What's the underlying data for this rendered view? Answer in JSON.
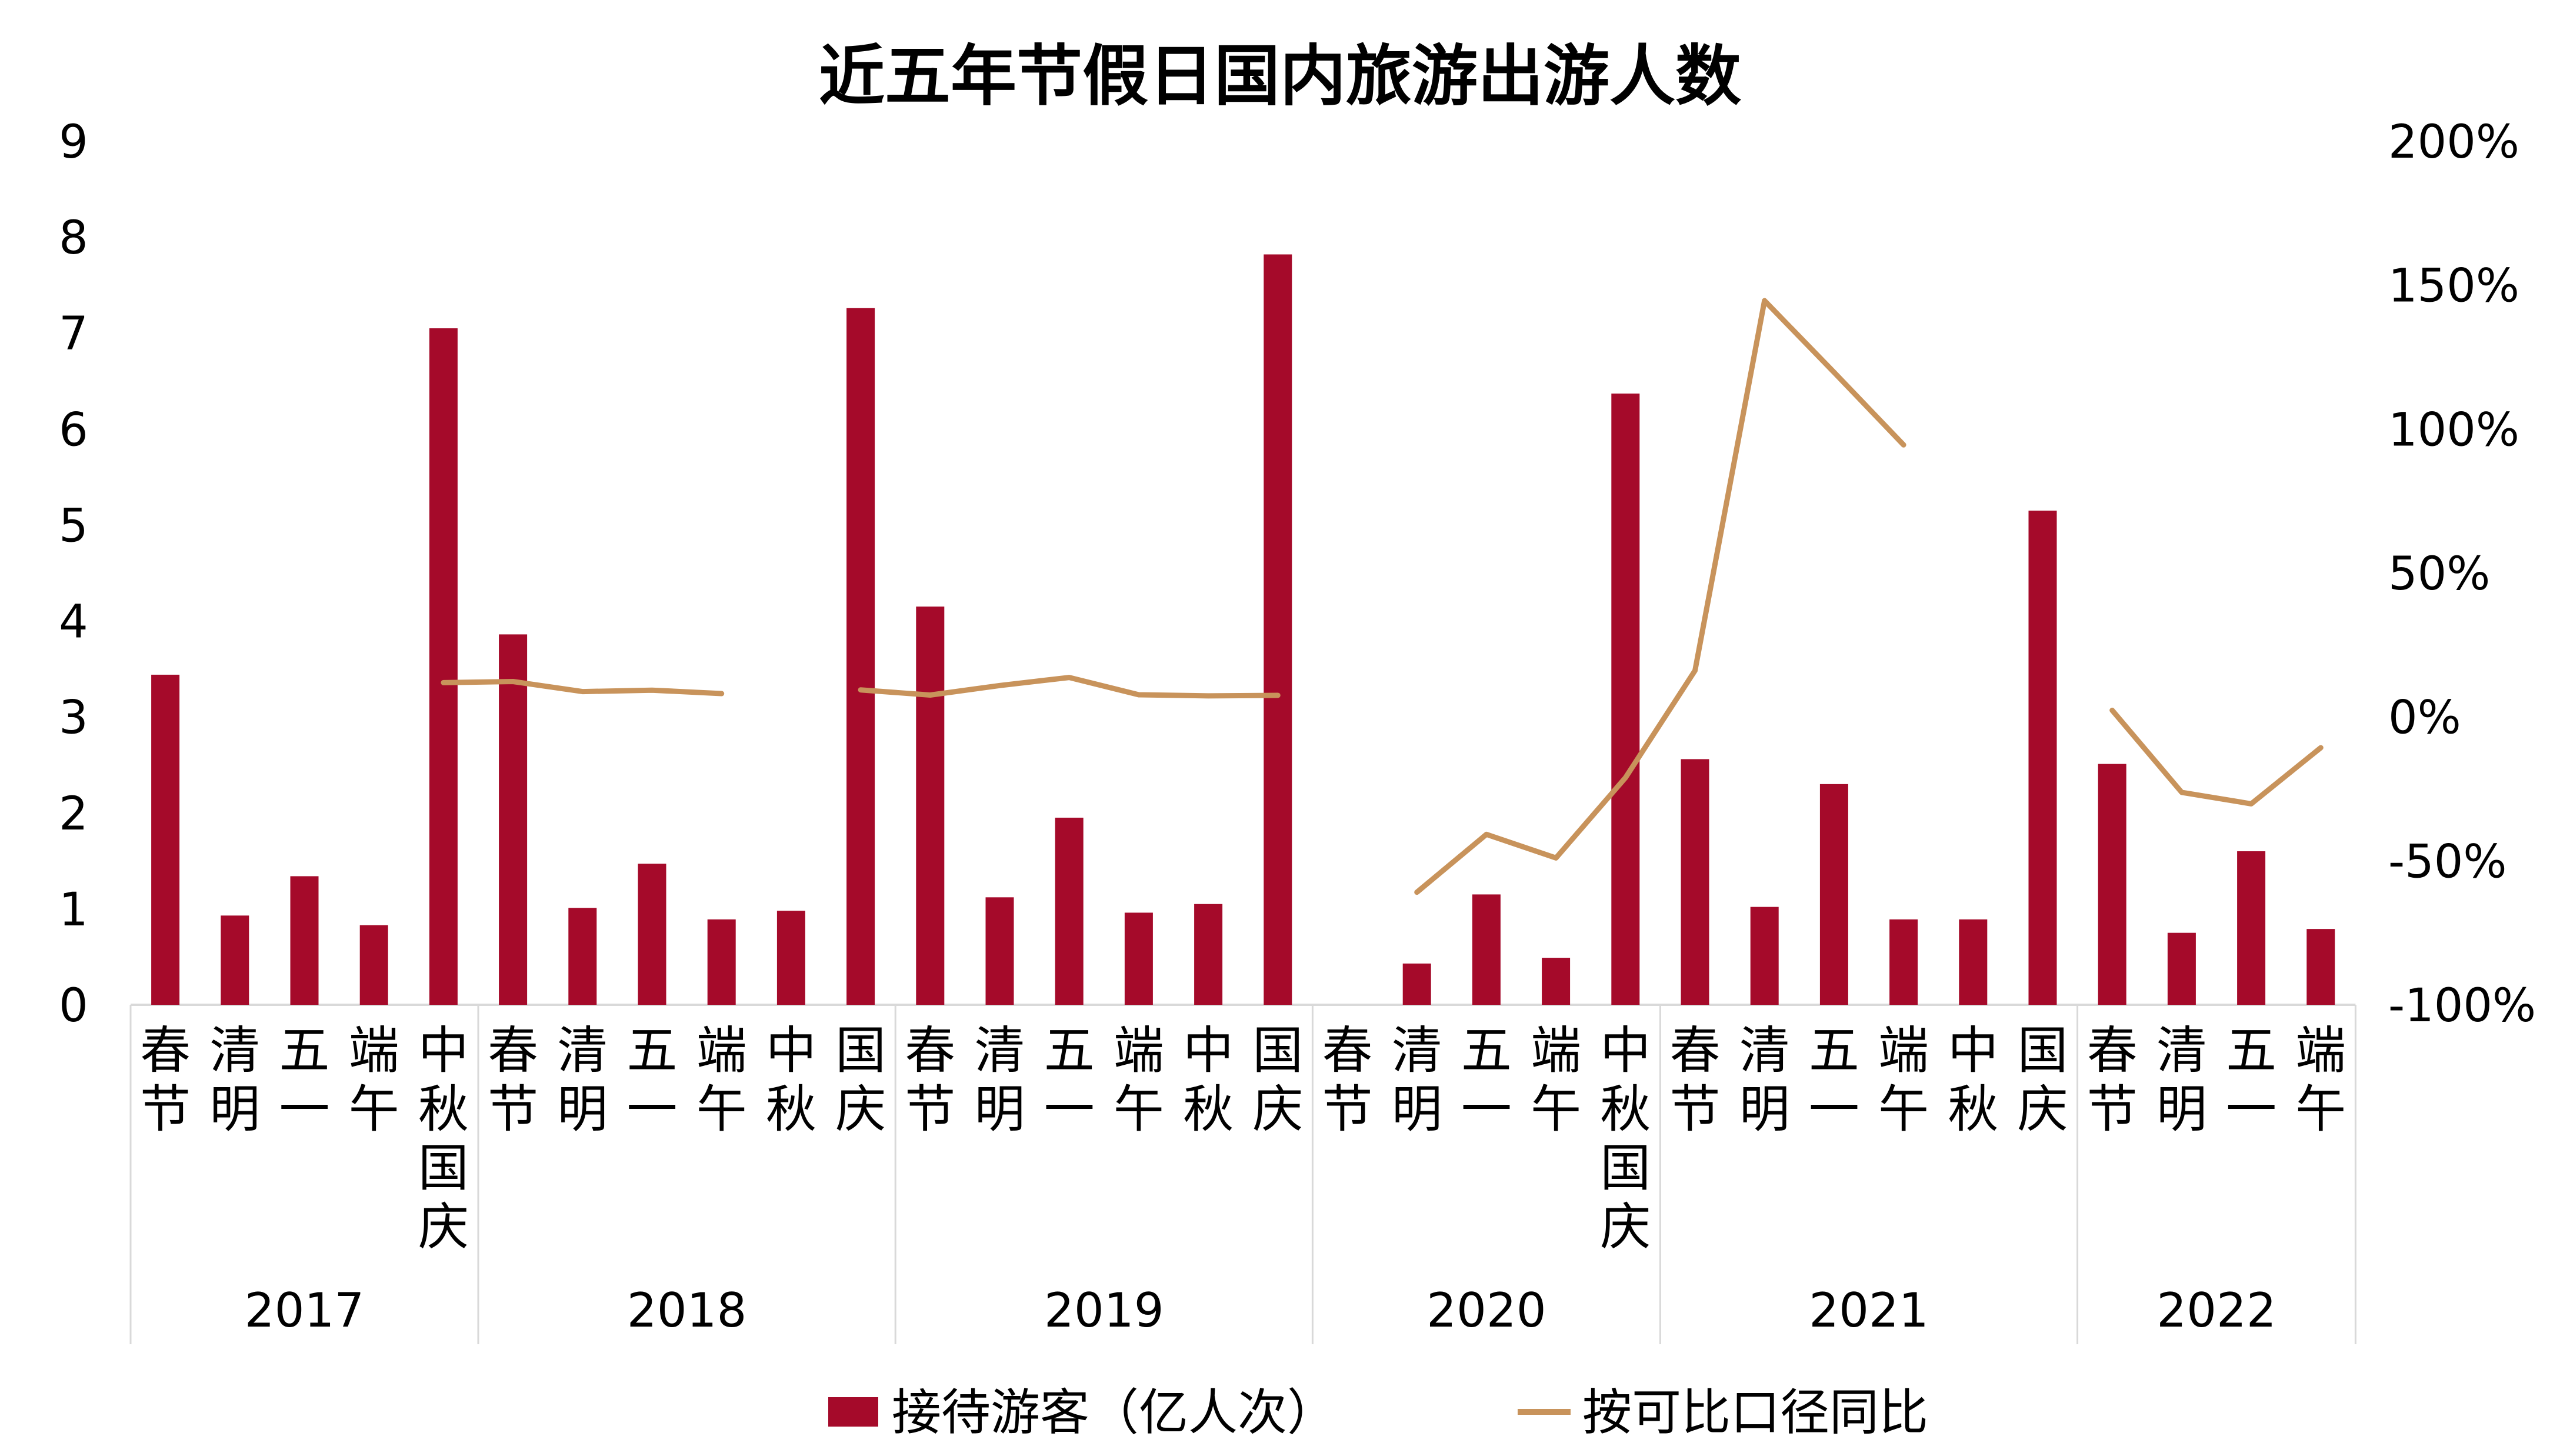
{
  "chart_data": {
    "type": "bar",
    "title": "近五年节假日国内旅游出游人数",
    "colors": {
      "bar": "#A50A2A",
      "line": "#C8935B",
      "axis": "#d9d9d9"
    },
    "y_left": {
      "min": 0,
      "max": 9,
      "ticks": [
        0,
        1,
        2,
        3,
        4,
        5,
        6,
        7,
        8,
        9
      ]
    },
    "y_right": {
      "min": -100,
      "max": 200,
      "ticks": [
        "-100%",
        "-50%",
        "0%",
        "50%",
        "100%",
        "150%",
        "200%"
      ]
    },
    "groups": [
      {
        "year": "2017",
        "categories": [
          "春节",
          "清明",
          "五一",
          "端午",
          "中秋国庆"
        ]
      },
      {
        "year": "2018",
        "categories": [
          "春节",
          "清明",
          "五一",
          "端午",
          "中秋",
          "国庆"
        ]
      },
      {
        "year": "2019",
        "categories": [
          "春节",
          "清明",
          "五一",
          "端午",
          "中秋",
          "国庆"
        ]
      },
      {
        "year": "2020",
        "categories": [
          "春节",
          "清明",
          "五一",
          "端午",
          "中秋国庆"
        ]
      },
      {
        "year": "2021",
        "categories": [
          "春节",
          "清明",
          "五一",
          "端午",
          "中秋",
          "国庆"
        ]
      },
      {
        "year": "2022",
        "categories": [
          "春节",
          "清明",
          "五一",
          "端午"
        ]
      }
    ],
    "series": [
      {
        "name": "接待游客（亿人次）",
        "type": "bar",
        "axis": "left",
        "values": [
          3.44,
          0.93,
          1.34,
          0.83,
          7.05,
          3.86,
          1.01,
          1.47,
          0.89,
          0.98,
          7.26,
          4.15,
          1.12,
          1.95,
          0.96,
          1.05,
          7.82,
          null,
          0.43,
          1.15,
          0.49,
          6.37,
          2.56,
          1.02,
          2.3,
          0.89,
          0.89,
          5.15,
          2.51,
          0.75,
          1.6,
          0.79
        ]
      },
      {
        "name": "按可比口径同比",
        "type": "line",
        "axis": "right",
        "values": [
          null,
          null,
          null,
          null,
          11.9,
          12.3,
          8.8,
          9.3,
          8.1,
          null,
          9.4,
          7.6,
          10.9,
          13.7,
          7.7,
          7.3,
          7.5,
          null,
          -60.9,
          -40.8,
          -49.0,
          -21.1,
          16.1,
          144.6,
          119.7,
          94.5,
          null,
          null,
          2.3,
          -26.2,
          -30.2,
          -10.7
        ]
      }
    ],
    "legend_position": "bottom"
  }
}
